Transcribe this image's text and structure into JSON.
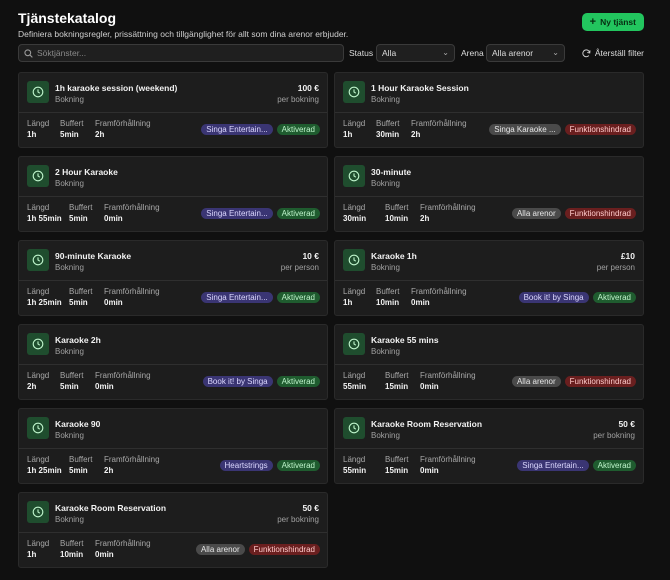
{
  "header": {
    "title": "Tjänstekatalog",
    "subtitle": "Definiera bokningsregler, prissättning och tillgänglighet för allt som dina arenor erbjuder.",
    "new_button": "Ny tjänst"
  },
  "filters": {
    "search_placeholder": "Söktjänster...",
    "status_label": "Status",
    "status_value": "Alla",
    "arena_label": "Arena",
    "arena_value": "Alla arenor",
    "reset_label": "Återställ filter"
  },
  "stat_labels": {
    "length": "Längd",
    "buffer": "Buffert",
    "advance": "Framförhållning"
  },
  "cards": [
    {
      "name": "1h karaoke session (weekend)",
      "type": "Bokning",
      "price": "100 €",
      "unit": "per bokning",
      "length": "1h",
      "buffer": "5min",
      "advance": "2h",
      "arena": "Singa Entertain...",
      "status": "Aktiverad"
    },
    {
      "name": "1 Hour Karaoke Session",
      "type": "Bokning",
      "price": "",
      "unit": "",
      "length": "1h",
      "buffer": "30min",
      "advance": "2h",
      "arena": "Singa Karaoke ...",
      "status": "Funktionshindrad"
    },
    {
      "name": "2 Hour Karaoke",
      "type": "Bokning",
      "price": "",
      "unit": "",
      "length": "1h 55min",
      "buffer": "5min",
      "advance": "0min",
      "arena": "Singa Entertain...",
      "status": "Aktiverad"
    },
    {
      "name": "30-minute",
      "type": "Bokning",
      "price": "",
      "unit": "",
      "length": "30min",
      "buffer": "10min",
      "advance": "2h",
      "arena": "Alla arenor",
      "status": "Funktionshindrad"
    },
    {
      "name": "90-minute Karaoke",
      "type": "Bokning",
      "price": "10 €",
      "unit": "per person",
      "length": "1h 25min",
      "buffer": "5min",
      "advance": "0min",
      "arena": "Singa Entertain...",
      "status": "Aktiverad"
    },
    {
      "name": "Karaoke 1h",
      "type": "Bokning",
      "price": "£10",
      "unit": "per person",
      "length": "1h",
      "buffer": "10min",
      "advance": "0min",
      "arena": "Book it! by Singa",
      "status": "Aktiverad"
    },
    {
      "name": "Karaoke 2h",
      "type": "Bokning",
      "price": "",
      "unit": "",
      "length": "2h",
      "buffer": "5min",
      "advance": "0min",
      "arena": "Book it! by Singa",
      "status": "Aktiverad"
    },
    {
      "name": "Karaoke 55 mins",
      "type": "Bokning",
      "price": "",
      "unit": "",
      "length": "55min",
      "buffer": "15min",
      "advance": "0min",
      "arena": "Alla arenor",
      "status": "Funktionshindrad"
    },
    {
      "name": "Karaoke 90",
      "type": "Bokning",
      "price": "",
      "unit": "",
      "length": "1h 25min",
      "buffer": "5min",
      "advance": "2h",
      "arena": "Heartstrings",
      "status": "Aktiverad"
    },
    {
      "name": "Karaoke Room Reservation",
      "type": "Bokning",
      "price": "50 €",
      "unit": "per bokning",
      "length": "55min",
      "buffer": "15min",
      "advance": "0min",
      "arena": "Singa Entertain...",
      "status": "Aktiverad"
    },
    {
      "name": "Karaoke Room Reservation",
      "type": "Bokning",
      "price": "50 €",
      "unit": "per bokning",
      "length": "1h",
      "buffer": "10min",
      "advance": "0min",
      "arena": "Alla arenor",
      "status": "Funktionshindrad"
    }
  ],
  "colors": {
    "accent": "#22c55e",
    "active": "#1f5c2f",
    "disabled": "#6a1f1f",
    "arena": "#3a3573"
  },
  "icons": {
    "card": "clock-icon",
    "search": "search-icon",
    "reset": "refresh-icon",
    "new": "plus-icon"
  }
}
